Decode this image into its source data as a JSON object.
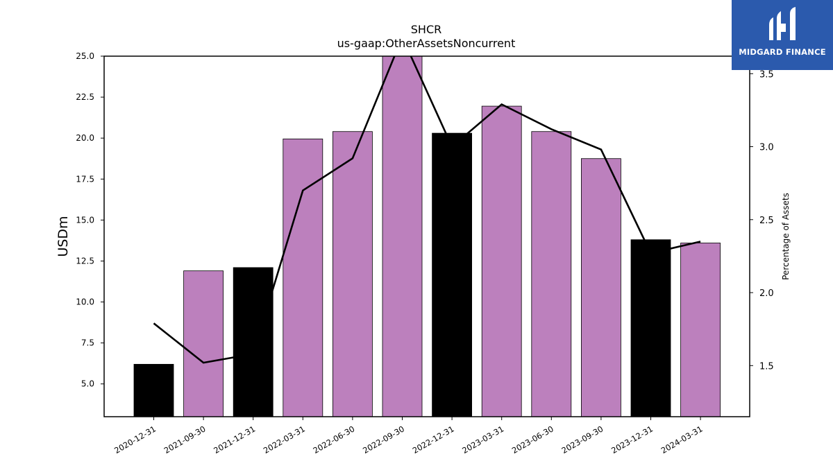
{
  "chart_data": {
    "type": "bar",
    "title": "SHCR",
    "subtitle": "us-gaap:OtherAssetsNoncurrent",
    "ylabel": "USDm",
    "y2label": "Percentage of Assets",
    "categories": [
      "2020-12-31",
      "2021-09-30",
      "2021-12-31",
      "2022-03-31",
      "2022-06-30",
      "2022-09-30",
      "2022-12-31",
      "2023-03-31",
      "2023-06-30",
      "2023-09-30",
      "2023-12-31",
      "2024-03-31"
    ],
    "values": [
      6.2,
      11.9,
      12.1,
      19.95,
      20.4,
      25.1,
      20.3,
      21.95,
      20.4,
      18.75,
      13.8,
      13.6
    ],
    "bar_colors": [
      "#000000",
      "#bc80bd",
      "#000000",
      "#bc80bd",
      "#bc80bd",
      "#bc80bd",
      "#000000",
      "#bc80bd",
      "#bc80bd",
      "#bc80bd",
      "#000000",
      "#bc80bd"
    ],
    "line_series": {
      "name": "",
      "values": [
        1.79,
        1.52,
        1.58,
        2.7,
        2.92,
        3.75,
        3.0,
        3.29,
        3.12,
        2.98,
        2.27,
        2.35
      ],
      "color": "#000000"
    },
    "ylim": [
      3.0,
      25.0
    ],
    "y2lim": [
      1.15,
      3.62
    ],
    "yticks": [
      "5.0",
      "7.5",
      "10.0",
      "12.5",
      "15.0",
      "17.5",
      "20.0",
      "22.5",
      "25.0"
    ],
    "y2ticks": [
      "1.5",
      "2.0",
      "2.5",
      "3.0",
      "3.5"
    ],
    "grid": false,
    "legend": "none"
  },
  "logo": {
    "text": "MIDGARD FINANCE"
  }
}
